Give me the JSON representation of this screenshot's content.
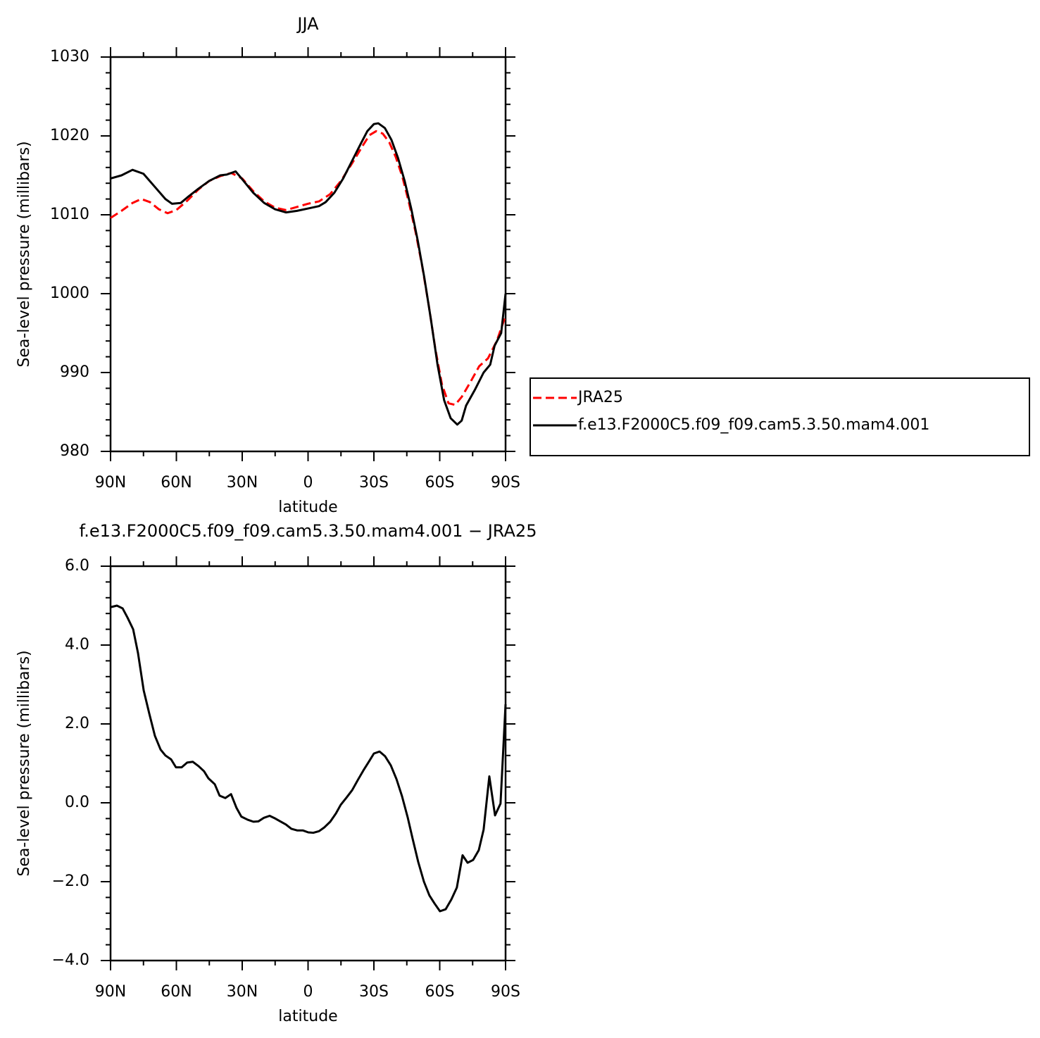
{
  "chart_data": [
    {
      "type": "line",
      "title": "JJA",
      "xlabel": "latitude",
      "ylabel": "Sea-level pressure (millibars)",
      "xlim": [
        90,
        -90
      ],
      "xticks": [
        {
          "value": 90,
          "label": "90N"
        },
        {
          "value": 60,
          "label": "60N"
        },
        {
          "value": 30,
          "label": "30N"
        },
        0,
        {
          "value": -30,
          "label": "30S"
        },
        {
          "value": -60,
          "label": "60S"
        },
        {
          "value": -90,
          "label": "90S"
        }
      ],
      "ylim": [
        980,
        1030
      ],
      "yticks": [
        980,
        990,
        1000,
        1010,
        1020,
        1030
      ],
      "legend": "right",
      "series": [
        {
          "name": "JRA25",
          "color": "#ff0000",
          "linestyle": "dashed",
          "x": [
            90,
            85,
            80,
            76,
            72,
            68,
            64,
            60,
            55,
            50,
            45,
            40,
            35,
            30,
            25,
            20,
            15,
            10,
            5,
            0,
            -5,
            -10,
            -15,
            -20,
            -25,
            -28,
            -31,
            -34,
            -37,
            -40,
            -43,
            -46,
            -49,
            -52,
            -55,
            -58,
            -61,
            -64,
            -67,
            -70,
            -74,
            -78,
            -82,
            -86,
            -90
          ],
          "values": [
            1009.6,
            1010.5,
            1011.5,
            1012.0,
            1011.6,
            1010.7,
            1010.2,
            1010.6,
            1011.8,
            1013.2,
            1014.3,
            1014.9,
            1015.3,
            1014.6,
            1013.0,
            1011.7,
            1010.9,
            1010.6,
            1011.0,
            1011.4,
            1011.7,
            1012.6,
            1014.3,
            1016.5,
            1018.8,
            1020.1,
            1020.6,
            1020.3,
            1019.2,
            1017.3,
            1014.8,
            1011.5,
            1007.8,
            1003.5,
            998.5,
            993.0,
            988.5,
            986.1,
            985.9,
            986.9,
            988.8,
            990.8,
            991.8,
            994.0,
            997.2
          ]
        },
        {
          "name": "f.e13.F2000C5.f09_f09.cam5.3.50.mam4.001",
          "color": "#000000",
          "linestyle": "solid",
          "x": [
            90,
            85,
            80,
            75,
            70,
            65,
            62,
            58,
            55,
            50,
            45,
            40,
            37,
            33,
            30,
            25,
            20,
            15,
            10,
            5,
            0,
            -5,
            -8,
            -12,
            -16,
            -20,
            -24,
            -27,
            -30,
            -32,
            -35,
            -38,
            -41,
            -44,
            -47,
            -50,
            -53,
            -56,
            -59,
            -62,
            -65,
            -68,
            -70,
            -72,
            -76,
            -80,
            -83,
            -85,
            -88,
            -90
          ],
          "values": [
            1014.6,
            1015.0,
            1015.7,
            1015.2,
            1013.6,
            1012.0,
            1011.4,
            1011.5,
            1012.2,
            1013.3,
            1014.3,
            1015.0,
            1015.1,
            1015.5,
            1014.5,
            1012.8,
            1011.5,
            1010.7,
            1010.3,
            1010.5,
            1010.8,
            1011.1,
            1011.6,
            1012.8,
            1014.6,
            1016.8,
            1019.0,
            1020.6,
            1021.5,
            1021.6,
            1021.0,
            1019.5,
            1017.2,
            1014.3,
            1010.8,
            1006.7,
            1002.0,
            996.7,
            991.0,
            986.5,
            984.2,
            983.4,
            983.9,
            985.8,
            987.8,
            990.0,
            991.0,
            993.4,
            995.0,
            1000.0
          ]
        }
      ]
    },
    {
      "type": "line",
      "title": "f.e13.F2000C5.f09_f09.cam5.3.50.mam4.001 − JRA25",
      "xlabel": "latitude",
      "ylabel": "Sea-level pressure (millibars)",
      "xlim": [
        90,
        -90
      ],
      "xticks": [
        {
          "value": 90,
          "label": "90N"
        },
        {
          "value": 60,
          "label": "60N"
        },
        {
          "value": 30,
          "label": "30N"
        },
        0,
        {
          "value": -30,
          "label": "30S"
        },
        {
          "value": -60,
          "label": "60S"
        },
        {
          "value": -90,
          "label": "90S"
        }
      ],
      "ylim": [
        -4,
        6
      ],
      "yticks": [
        {
          "value": -4,
          "label": "−4.0"
        },
        {
          "value": -2,
          "label": "−2.0"
        },
        {
          "value": 0,
          "label": "0.0"
        },
        {
          "value": 2,
          "label": "2.0"
        },
        {
          "value": 4,
          "label": "4.0"
        },
        {
          "value": 6,
          "label": "6.0"
        }
      ],
      "series": [
        {
          "color": "#000000",
          "linestyle": "solid",
          "x": [
            90,
            87.1,
            84.5,
            82.3,
            79.7,
            77.5,
            74.9,
            72.3,
            69.8,
            67.2,
            65.0,
            62.4,
            60.2,
            57.6,
            55.1,
            52.5,
            49.9,
            47.4,
            45.4,
            42.5,
            40.3,
            37.7,
            35.1,
            32.6,
            30.4,
            27.5,
            24.9,
            22.6,
            20.1,
            17.5,
            14.9,
            12.7,
            10.1,
            7.6,
            5.0,
            2.4,
            -0.1,
            -2.4,
            -5.0,
            -7.5,
            -10.1,
            -12.7,
            -14.9,
            -17.5,
            -20.1,
            -22.6,
            -25.2,
            -27.8,
            -30.0,
            -32.6,
            -35.1,
            -37.7,
            -40.3,
            -42.8,
            -45.4,
            -47.6,
            -50.2,
            -52.8,
            -55.3,
            -57.6,
            -60.1,
            -62.7,
            -65.3,
            -67.8,
            -70.4,
            -72.7,
            -75.2,
            -77.8,
            -80.0,
            -82.6,
            -85.2,
            -87.7,
            -90
          ],
          "values": [
            4.96,
            5.0,
            4.93,
            4.7,
            4.4,
            3.8,
            2.85,
            2.25,
            1.7,
            1.35,
            1.2,
            1.1,
            0.9,
            0.9,
            1.02,
            1.04,
            0.93,
            0.8,
            0.62,
            0.47,
            0.18,
            0.12,
            0.22,
            -0.13,
            -0.35,
            -0.43,
            -0.48,
            -0.47,
            -0.38,
            -0.33,
            -0.4,
            -0.47,
            -0.55,
            -0.66,
            -0.7,
            -0.7,
            -0.75,
            -0.76,
            -0.72,
            -0.62,
            -0.48,
            -0.27,
            -0.05,
            0.13,
            0.32,
            0.57,
            0.82,
            1.05,
            1.25,
            1.3,
            1.18,
            0.95,
            0.6,
            0.17,
            -0.37,
            -0.9,
            -1.5,
            -2.0,
            -2.35,
            -2.55,
            -2.75,
            -2.7,
            -2.45,
            -2.15,
            -1.33,
            -1.52,
            -1.45,
            -1.2,
            -0.68,
            0.67,
            -0.32,
            -0.02,
            2.5
          ]
        }
      ]
    }
  ]
}
